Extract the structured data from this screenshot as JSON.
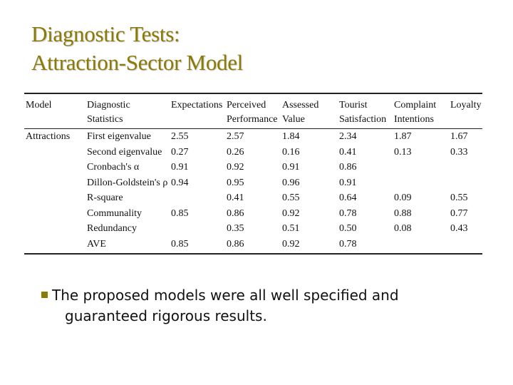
{
  "title": {
    "line1": "Diagnostic Tests:",
    "line2": "Attraction-Sector Model"
  },
  "colors": {
    "title": "#8b7a05",
    "bullet": "#8b7a05"
  },
  "table": {
    "headers": [
      {
        "line1": "Model",
        "line2": ""
      },
      {
        "line1": "Diagnostic",
        "line2": "Statistics"
      },
      {
        "line1": "Expectations",
        "line2": ""
      },
      {
        "line1": "Perceived",
        "line2": "Performance"
      },
      {
        "line1": "Assessed",
        "line2": "Value"
      },
      {
        "line1": "Tourist",
        "line2": "Satisfaction"
      },
      {
        "line1": "Complaint",
        "line2": "Intentions"
      },
      {
        "line1": "Loyalty",
        "line2": ""
      }
    ],
    "rows": [
      [
        "Attractions",
        "First eigenvalue",
        "2.55",
        "2.57",
        "1.84",
        "2.34",
        "1.87",
        "1.67"
      ],
      [
        "",
        "Second eigenvalue",
        "0.27",
        "0.26",
        "0.16",
        "0.41",
        "0.13",
        "0.33"
      ],
      [
        "",
        "Cronbach's α",
        "0.91",
        "0.92",
        "0.91",
        "0.86",
        "",
        ""
      ],
      [
        "",
        "Dillon-Goldstein's ρ",
        "0.94",
        "0.95",
        "0.96",
        "0.91",
        "",
        ""
      ],
      [
        "",
        "R-square",
        "",
        "0.41",
        "0.55",
        "0.64",
        "0.09",
        "0.55"
      ],
      [
        "",
        "Communality",
        "0.85",
        "0.86",
        "0.92",
        "0.78",
        "0.88",
        "0.77"
      ],
      [
        "",
        "Redundancy",
        "",
        "0.35",
        "0.51",
        "0.50",
        "0.08",
        "0.43"
      ],
      [
        "",
        "AVE",
        "0.85",
        "0.86",
        "0.92",
        "0.78",
        "",
        ""
      ]
    ]
  },
  "bullet": {
    "line1": "The proposed models were all well specified and",
    "line2": "guaranteed rigorous results."
  }
}
